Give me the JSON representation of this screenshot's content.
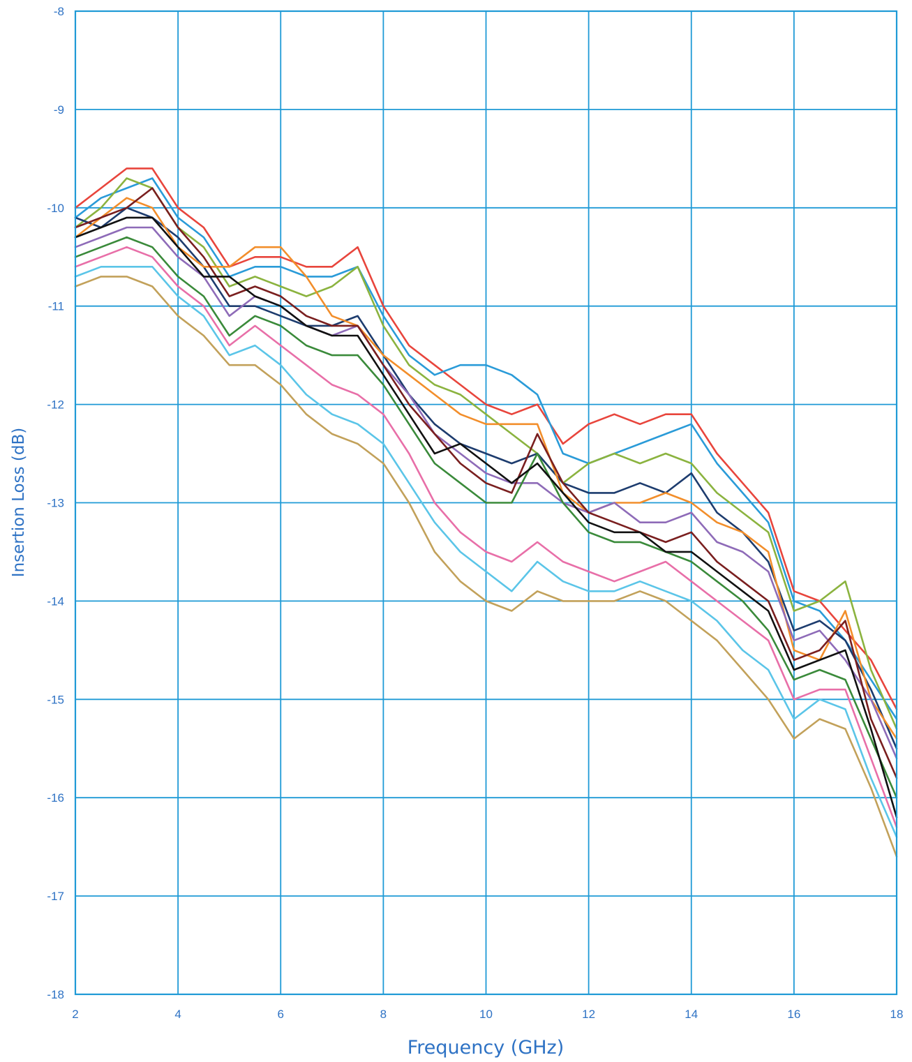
{
  "chart_data": {
    "type": "line",
    "title": "",
    "xlabel": "Frequency (GHz)",
    "ylabel": "Insertion Loss (dB)",
    "xlim": [
      2,
      18
    ],
    "ylim": [
      -18,
      -8
    ],
    "xticks": [
      2,
      4,
      6,
      8,
      10,
      12,
      14,
      16,
      18
    ],
    "yticks": [
      -8,
      -9,
      -10,
      -11,
      -12,
      -13,
      -14,
      -15,
      -16,
      -17,
      -18
    ],
    "xtick_labels": [
      "2",
      "4",
      "6",
      "8",
      "10",
      "12",
      "14",
      "16",
      "18"
    ],
    "ytick_labels": [
      "-8",
      "-9",
      "-10",
      "-11",
      "-12",
      "-13",
      "-14",
      "-15",
      "-16",
      "-17",
      "-18"
    ],
    "grid": true,
    "legend": "none",
    "x": [
      2,
      2.5,
      3,
      3.5,
      4,
      4.5,
      5,
      5.5,
      6,
      6.5,
      7,
      7.5,
      8,
      8.5,
      9,
      9.5,
      10,
      10.5,
      11,
      11.5,
      12,
      12.5,
      13,
      13.5,
      14,
      14.5,
      15,
      15.5,
      16,
      16.5,
      17,
      17.5,
      18
    ],
    "colors": [
      "#e8453c",
      "#2a9bd8",
      "#8bb33f",
      "#1d3c6e",
      "#f28e2b",
      "#8e6bb8",
      "#7a1f1f",
      "#3a8a3a",
      "#111111",
      "#e86fa8",
      "#5bc5e8",
      "#c2a15a"
    ],
    "series": [
      {
        "values": [
          -10.0,
          -9.8,
          -9.6,
          -9.6,
          -10.0,
          -10.2,
          -10.6,
          -10.5,
          -10.5,
          -10.6,
          -10.6,
          -10.4,
          -11.0,
          -11.4,
          -11.6,
          -11.8,
          -12.0,
          -12.1,
          -12.0,
          -12.4,
          -12.2,
          -12.1,
          -12.2,
          -12.1,
          -12.1,
          -12.5,
          -12.8,
          -13.1,
          -13.9,
          -14.0,
          -14.3,
          -14.6,
          -15.1
        ]
      },
      {
        "values": [
          -10.1,
          -9.9,
          -9.8,
          -9.7,
          -10.1,
          -10.3,
          -10.7,
          -10.6,
          -10.6,
          -10.7,
          -10.7,
          -10.6,
          -11.1,
          -11.5,
          -11.7,
          -11.6,
          -11.6,
          -11.7,
          -11.9,
          -12.5,
          -12.6,
          -12.5,
          -12.4,
          -12.3,
          -12.2,
          -12.6,
          -12.9,
          -13.2,
          -14.0,
          -14.1,
          -14.4,
          -14.8,
          -15.2
        ]
      },
      {
        "values": [
          -10.2,
          -10.0,
          -9.7,
          -9.8,
          -10.2,
          -10.4,
          -10.8,
          -10.7,
          -10.8,
          -10.9,
          -10.8,
          -10.6,
          -11.2,
          -11.6,
          -11.8,
          -11.9,
          -12.1,
          -12.3,
          -12.5,
          -12.8,
          -12.6,
          -12.5,
          -12.6,
          -12.5,
          -12.6,
          -12.9,
          -13.1,
          -13.3,
          -14.1,
          -14.0,
          -13.8,
          -14.7,
          -15.3
        ]
      },
      {
        "values": [
          -10.1,
          -10.2,
          -10.0,
          -10.1,
          -10.3,
          -10.6,
          -11.0,
          -11.0,
          -11.1,
          -11.2,
          -11.2,
          -11.1,
          -11.5,
          -11.9,
          -12.2,
          -12.4,
          -12.5,
          -12.6,
          -12.5,
          -12.8,
          -12.9,
          -12.9,
          -12.8,
          -12.9,
          -12.7,
          -13.1,
          -13.3,
          -13.6,
          -14.3,
          -14.2,
          -14.4,
          -14.9,
          -15.5
        ]
      },
      {
        "values": [
          -10.3,
          -10.1,
          -9.9,
          -10.0,
          -10.4,
          -10.6,
          -10.6,
          -10.4,
          -10.4,
          -10.7,
          -11.1,
          -11.2,
          -11.5,
          -11.7,
          -11.9,
          -12.1,
          -12.2,
          -12.2,
          -12.2,
          -12.9,
          -13.1,
          -13.0,
          -13.0,
          -12.9,
          -13.0,
          -13.2,
          -13.3,
          -13.5,
          -14.5,
          -14.6,
          -14.1,
          -15.0,
          -15.4
        ]
      },
      {
        "values": [
          -10.4,
          -10.3,
          -10.2,
          -10.2,
          -10.5,
          -10.7,
          -11.1,
          -10.9,
          -11.0,
          -11.2,
          -11.3,
          -11.2,
          -11.6,
          -11.9,
          -12.3,
          -12.5,
          -12.7,
          -12.8,
          -12.8,
          -13.0,
          -13.1,
          -13.0,
          -13.2,
          -13.2,
          -13.1,
          -13.4,
          -13.5,
          -13.7,
          -14.4,
          -14.3,
          -14.6,
          -15.0,
          -15.6
        ]
      },
      {
        "values": [
          -10.2,
          -10.1,
          -10.0,
          -9.8,
          -10.2,
          -10.5,
          -10.9,
          -10.8,
          -10.9,
          -11.1,
          -11.2,
          -11.2,
          -11.6,
          -12.0,
          -12.3,
          -12.6,
          -12.8,
          -12.9,
          -12.3,
          -12.8,
          -13.1,
          -13.2,
          -13.3,
          -13.4,
          -13.3,
          -13.6,
          -13.8,
          -14.0,
          -14.6,
          -14.5,
          -14.2,
          -15.2,
          -15.8
        ]
      },
      {
        "values": [
          -10.5,
          -10.4,
          -10.3,
          -10.4,
          -10.7,
          -10.9,
          -11.3,
          -11.1,
          -11.2,
          -11.4,
          -11.5,
          -11.5,
          -11.8,
          -12.2,
          -12.6,
          -12.8,
          -13.0,
          -13.0,
          -12.5,
          -13.0,
          -13.3,
          -13.4,
          -13.4,
          -13.5,
          -13.6,
          -13.8,
          -14.0,
          -14.3,
          -14.8,
          -14.7,
          -14.8,
          -15.4,
          -16.0
        ]
      },
      {
        "values": [
          -10.3,
          -10.2,
          -10.1,
          -10.1,
          -10.4,
          -10.7,
          -10.7,
          -10.9,
          -11.0,
          -11.2,
          -11.3,
          -11.3,
          -11.7,
          -12.1,
          -12.5,
          -12.4,
          -12.6,
          -12.8,
          -12.6,
          -12.9,
          -13.2,
          -13.3,
          -13.3,
          -13.5,
          -13.5,
          -13.7,
          -13.9,
          -14.1,
          -14.7,
          -14.6,
          -14.5,
          -15.3,
          -16.2
        ]
      },
      {
        "values": [
          -10.6,
          -10.5,
          -10.4,
          -10.5,
          -10.8,
          -11.0,
          -11.4,
          -11.2,
          -11.4,
          -11.6,
          -11.8,
          -11.9,
          -12.1,
          -12.5,
          -13.0,
          -13.3,
          -13.5,
          -13.6,
          -13.4,
          -13.6,
          -13.7,
          -13.8,
          -13.7,
          -13.6,
          -13.8,
          -14.0,
          -14.2,
          -14.4,
          -15.0,
          -14.9,
          -14.9,
          -15.6,
          -16.3
        ]
      },
      {
        "values": [
          -10.7,
          -10.6,
          -10.6,
          -10.6,
          -10.9,
          -11.1,
          -11.5,
          -11.4,
          -11.6,
          -11.9,
          -12.1,
          -12.2,
          -12.4,
          -12.8,
          -13.2,
          -13.5,
          -13.7,
          -13.9,
          -13.6,
          -13.8,
          -13.9,
          -13.9,
          -13.8,
          -13.9,
          -14.0,
          -14.2,
          -14.5,
          -14.7,
          -15.2,
          -15.0,
          -15.1,
          -15.8,
          -16.4
        ]
      },
      {
        "values": [
          -10.8,
          -10.7,
          -10.7,
          -10.8,
          -11.1,
          -11.3,
          -11.6,
          -11.6,
          -11.8,
          -12.1,
          -12.3,
          -12.4,
          -12.6,
          -13.0,
          -13.5,
          -13.8,
          -14.0,
          -14.1,
          -13.9,
          -14.0,
          -14.0,
          -14.0,
          -13.9,
          -14.0,
          -14.2,
          -14.4,
          -14.7,
          -15.0,
          -15.4,
          -15.2,
          -15.3,
          -15.9,
          -16.6
        ]
      }
    ]
  }
}
